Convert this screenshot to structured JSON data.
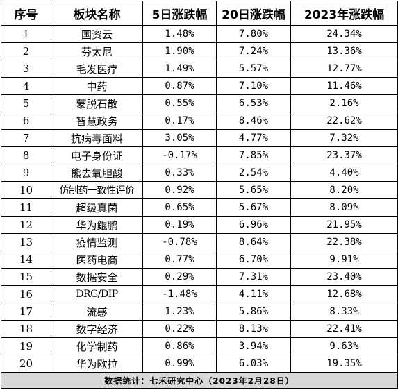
{
  "headers": {
    "index": "序号",
    "sector": "板块名称",
    "change_5d": "5日涨跌幅",
    "change_20d": "20日涨跌幅",
    "change_2023": "2023年涨跌幅"
  },
  "rows": [
    {
      "index": "1",
      "sector": "国资云",
      "change_5d": "1.48%",
      "change_20d": "7.80%",
      "change_2023": "24.34%"
    },
    {
      "index": "2",
      "sector": "芬太尼",
      "change_5d": "1.90%",
      "change_20d": "7.24%",
      "change_2023": "13.36%"
    },
    {
      "index": "3",
      "sector": "毛发医疗",
      "change_5d": "1.49%",
      "change_20d": "5.57%",
      "change_2023": "12.77%"
    },
    {
      "index": "4",
      "sector": "中药",
      "change_5d": "0.87%",
      "change_20d": "7.10%",
      "change_2023": "11.46%"
    },
    {
      "index": "5",
      "sector": "蒙脱石散",
      "change_5d": "0.55%",
      "change_20d": "6.53%",
      "change_2023": "2.16%"
    },
    {
      "index": "6",
      "sector": "智慧政务",
      "change_5d": "0.17%",
      "change_20d": "8.46%",
      "change_2023": "22.62%"
    },
    {
      "index": "7",
      "sector": "抗病毒面料",
      "change_5d": "3.05%",
      "change_20d": "4.77%",
      "change_2023": "7.32%"
    },
    {
      "index": "8",
      "sector": "电子身份证",
      "change_5d": "-0.17%",
      "change_20d": "7.85%",
      "change_2023": "23.37%"
    },
    {
      "index": "9",
      "sector": "熊去氧胆酸",
      "change_5d": "0.33%",
      "change_20d": "2.54%",
      "change_2023": "4.40%"
    },
    {
      "index": "10",
      "sector": "仿制药一致性评价",
      "change_5d": "0.92%",
      "change_20d": "5.65%",
      "change_2023": "8.20%"
    },
    {
      "index": "11",
      "sector": "超级真菌",
      "change_5d": "0.65%",
      "change_20d": "5.67%",
      "change_2023": "8.09%"
    },
    {
      "index": "12",
      "sector": "华为鲲鹏",
      "change_5d": "0.19%",
      "change_20d": "6.96%",
      "change_2023": "21.95%"
    },
    {
      "index": "13",
      "sector": "疫情监测",
      "change_5d": "-0.78%",
      "change_20d": "8.64%",
      "change_2023": "22.38%"
    },
    {
      "index": "14",
      "sector": "医药电商",
      "change_5d": "0.77%",
      "change_20d": "6.70%",
      "change_2023": "9.91%"
    },
    {
      "index": "15",
      "sector": "数据安全",
      "change_5d": "0.29%",
      "change_20d": "7.31%",
      "change_2023": "23.40%"
    },
    {
      "index": "16",
      "sector": "DRG/DIP",
      "change_5d": "-1.48%",
      "change_20d": "4.11%",
      "change_2023": "12.68%"
    },
    {
      "index": "17",
      "sector": "流感",
      "change_5d": "1.23%",
      "change_20d": "5.86%",
      "change_2023": "8.33%"
    },
    {
      "index": "18",
      "sector": "数字经济",
      "change_5d": "0.22%",
      "change_20d": "8.13%",
      "change_2023": "22.41%"
    },
    {
      "index": "19",
      "sector": "化学制药",
      "change_5d": "0.86%",
      "change_20d": "3.94%",
      "change_2023": "9.63%"
    },
    {
      "index": "20",
      "sector": "华为欧拉",
      "change_5d": "0.99%",
      "change_20d": "6.03%",
      "change_2023": "19.35%"
    }
  ],
  "footer": "数据统计：七禾研究中心（2023年2月28日）"
}
